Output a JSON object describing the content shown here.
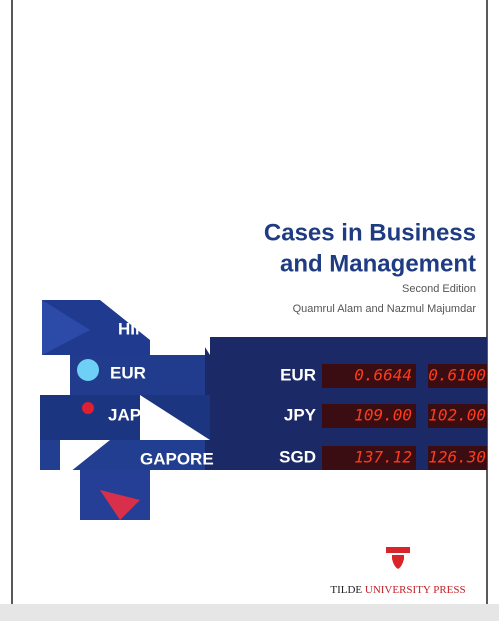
{
  "cover": {
    "title": [
      "Cases in Business",
      "and Management"
    ],
    "edition": "Second Edition",
    "authors": "Quamrul Alam and Nazmul Majumdar",
    "board": {
      "countries": [
        "HIN",
        "EUR",
        "JAPA",
        "GAPORE"
      ],
      "rows": [
        {
          "code": "EUR",
          "rates": [
            "0.6644",
            "0.6100"
          ]
        },
        {
          "code": "JPY",
          "rates": [
            "109.00",
            "102.00"
          ]
        },
        {
          "code": "SGD",
          "rates": [
            "137.12",
            "126.30"
          ]
        }
      ]
    },
    "publisher": [
      "TILDE",
      "UNIVERSITY PRESS"
    ]
  }
}
